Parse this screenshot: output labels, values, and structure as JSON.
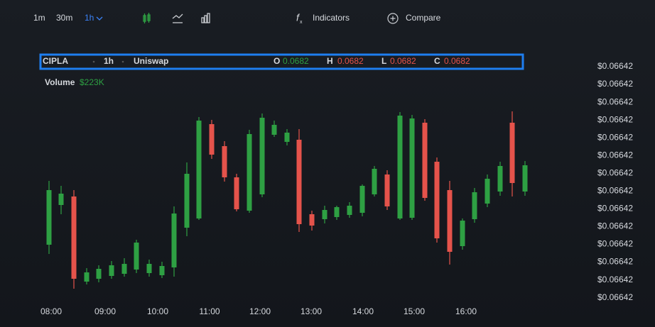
{
  "toolbar": {
    "timeframes": [
      "1m",
      "30m",
      "1h"
    ],
    "indicators": "Indicators",
    "compare": "Compare"
  },
  "legend": {
    "symbol": "CIPLA",
    "interval": "1h",
    "exchange": "Uniswap",
    "ohlc": [
      {
        "label": "O",
        "value": "0.0682"
      },
      {
        "label": "H",
        "value": "0.0682"
      },
      {
        "label": "L",
        "value": "0.0682"
      },
      {
        "label": "C",
        "value": "0.0682"
      }
    ]
  },
  "volume": {
    "label": "Volume",
    "value": "$223K"
  },
  "y_axis_labels": [
    "$0.06642",
    "$0.06642",
    "$0.06642",
    "$0.06642",
    "$0.06642",
    "$0.06642",
    "$0.06642",
    "$0.06642",
    "$0.06642",
    "$0.06642",
    "$0.06642",
    "$0.06642",
    "$0.06642",
    "$0.06642"
  ],
  "x_axis_labels": [
    "08:00",
    "09:00",
    "10:00",
    "11:00",
    "12:00",
    "13:00",
    "14:00",
    "15:00",
    "16:00"
  ]
}
